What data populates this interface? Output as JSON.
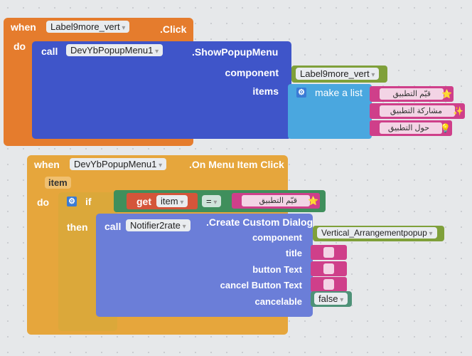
{
  "event1": {
    "when": "when",
    "component": "Label9more_vert",
    "event": ".Click",
    "do": "do",
    "call": {
      "call": "call",
      "component": "DevYbPopupMenu1",
      "method": ".ShowPopupMenu",
      "arg_component": "component",
      "arg_items": "items",
      "component_value": "Label9more_vert",
      "make_list": "make a list",
      "items": [
        {
          "text": "قيّم التطبيق",
          "icon": "star-icon"
        },
        {
          "text": "مشاركة التطبيق",
          "icon": "share-sparkle-icon"
        },
        {
          "text": "حول التطبيق",
          "icon": "lightbulb-icon"
        }
      ]
    }
  },
  "event2": {
    "when": "when",
    "component": "DevYbPopupMenu1",
    "event": ".On Menu Item Click",
    "param": "item",
    "do": "do",
    "if": {
      "if": "if",
      "then": "then",
      "get": "get",
      "var": "item",
      "op": "=",
      "compare_text": "قيّم التطبيق",
      "compare_icon": "star-icon"
    },
    "call": {
      "call": "call",
      "component": "Notifier2rate",
      "method": ".Create Custom Dialog",
      "args": [
        "component",
        "title",
        "button Text",
        "cancel Button Text",
        "cancelable"
      ],
      "component_value": "Vertical_Arrangementpopup",
      "cancelable_value": "false"
    }
  },
  "colors": {
    "event1": "#e57c2d",
    "event2": "#e6a63c",
    "control": "#dba83a",
    "call1": "#3f55c9",
    "call2": "#6b7ed8",
    "component": "#7fa03a",
    "list": "#4aa7df",
    "text": "#cf3f8a",
    "logic": "#4e9278",
    "compare": "#3f8f5c",
    "get": "#d4553a"
  }
}
